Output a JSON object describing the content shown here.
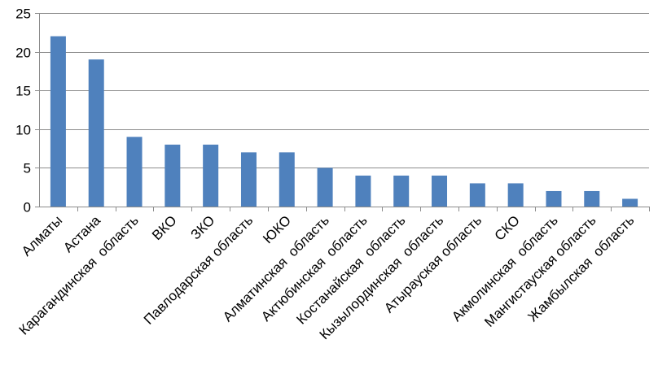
{
  "chart_data": {
    "type": "bar",
    "title": "",
    "xlabel": "",
    "ylabel": "",
    "ylim": [
      0,
      25
    ],
    "yticks": [
      0,
      5,
      10,
      15,
      20,
      25
    ],
    "grid": true,
    "legend": "none",
    "bar_color": "#4f81bd",
    "categories": [
      "Алматы",
      "Астана",
      "Карагандинская  область",
      "ВКО",
      "ЗКО",
      "Павлодарская область",
      "ЮКО",
      "Алматинская  область",
      "Актюбинская  область",
      "Костанайская  область",
      "Кызылординская  область",
      "Атырауская область",
      "СКО",
      "Акмолинская  область",
      "Мангистауская область",
      "Жамбылская  область"
    ],
    "values": [
      22,
      19,
      9,
      8,
      8,
      7,
      7,
      5,
      4,
      4,
      4,
      3,
      3,
      2,
      2,
      1
    ]
  }
}
